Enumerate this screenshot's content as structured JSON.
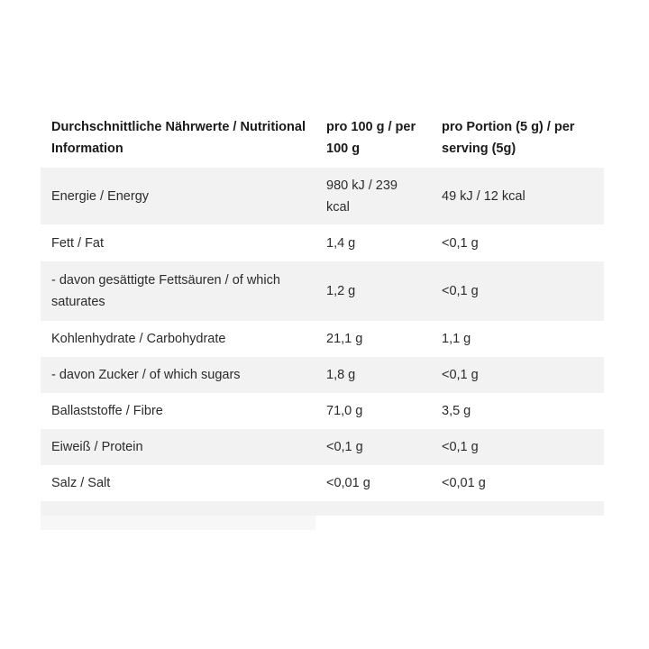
{
  "header": {
    "col1": "Durchschnittliche Nährwerte / Nutritional Information",
    "col2": "pro 100 g / per 100 g",
    "col3": "pro Portion (5 g) / per serving (5g)"
  },
  "rows": [
    {
      "name": "Energie / Energy",
      "per100": "980 kJ / 239 kcal",
      "perPortion": "49 kJ / 12 kcal"
    },
    {
      "name": "Fett / Fat",
      "per100": "1,4 g",
      "perPortion": "<0,1 g"
    },
    {
      "name": "- davon gesättigte Fettsäuren / of which saturates",
      "per100": "1,2 g",
      "perPortion": "<0,1 g"
    },
    {
      "name": "Kohlenhydrate / Carbohydrate",
      "per100": "21,1 g",
      "perPortion": "1,1 g"
    },
    {
      "name": "- davon Zucker / of which sugars",
      "per100": "1,8 g",
      "perPortion": "<0,1 g"
    },
    {
      "name": "Ballaststoffe / Fibre",
      "per100": "71,0 g",
      "perPortion": "3,5 g"
    },
    {
      "name": "Eiweiß / Protein",
      "per100": "<0,1 g",
      "perPortion": "<0,1 g"
    },
    {
      "name": "Salz / Salt",
      "per100": "<0,01 g",
      "perPortion": "<0,01 g"
    }
  ]
}
